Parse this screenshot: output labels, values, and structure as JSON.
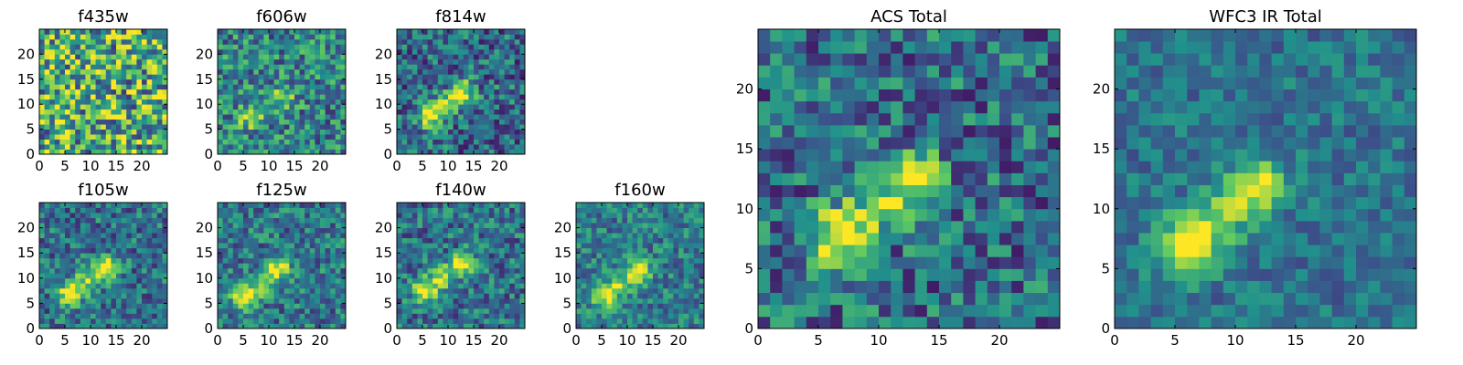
{
  "figure": {
    "colormap": "viridis",
    "colormap_stops": [
      "#440154",
      "#3b528b",
      "#21918c",
      "#5ec962",
      "#fde725"
    ]
  },
  "chart_data": [
    {
      "type": "heatmap",
      "title": "f435w",
      "xticks": [
        "0",
        "5",
        "10",
        "15",
        "20"
      ],
      "yticks": [
        "0",
        "5",
        "10",
        "15",
        "20"
      ],
      "xlim": [
        0,
        25
      ],
      "ylim": [
        0,
        25
      ],
      "grid_size": 25,
      "pattern": "noise",
      "mean_level": 0.62,
      "noise_level": 0.45,
      "blob_strength": 0.0
    },
    {
      "type": "heatmap",
      "title": "f606w",
      "xticks": [
        "0",
        "5",
        "10",
        "15",
        "20"
      ],
      "yticks": [
        "0",
        "5",
        "10",
        "15",
        "20"
      ],
      "xlim": [
        0,
        25
      ],
      "ylim": [
        0,
        25
      ],
      "grid_size": 25,
      "pattern": "blob",
      "mean_level": 0.45,
      "noise_level": 0.3,
      "blob_strength": 0.35,
      "blob_centers": [
        [
          6.5,
          7.5
        ],
        [
          12.5,
          11.5
        ]
      ]
    },
    {
      "type": "heatmap",
      "title": "f814w",
      "xticks": [
        "0",
        "5",
        "10",
        "15",
        "20"
      ],
      "yticks": [
        "0",
        "5",
        "10",
        "15",
        "20"
      ],
      "xlim": [
        0,
        25
      ],
      "ylim": [
        0,
        25
      ],
      "grid_size": 25,
      "pattern": "blob",
      "mean_level": 0.35,
      "noise_level": 0.28,
      "blob_strength": 0.6,
      "blob_centers": [
        [
          6.5,
          7.5
        ],
        [
          13.0,
          12.5
        ]
      ]
    },
    {
      "type": "heatmap",
      "title": "f105w",
      "xticks": [
        "0",
        "5",
        "10",
        "15",
        "20"
      ],
      "yticks": [
        "0",
        "5",
        "10",
        "15",
        "20"
      ],
      "xlim": [
        0,
        25
      ],
      "ylim": [
        0,
        25
      ],
      "grid_size": 25,
      "pattern": "blob",
      "mean_level": 0.38,
      "noise_level": 0.25,
      "blob_strength": 0.6,
      "blob_centers": [
        [
          6.0,
          7.0
        ],
        [
          13.0,
          12.0
        ]
      ]
    },
    {
      "type": "heatmap",
      "title": "f125w",
      "xticks": [
        "0",
        "5",
        "10",
        "15",
        "20"
      ],
      "yticks": [
        "0",
        "5",
        "10",
        "15",
        "20"
      ],
      "xlim": [
        0,
        25
      ],
      "ylim": [
        0,
        25
      ],
      "grid_size": 25,
      "pattern": "blob",
      "mean_level": 0.4,
      "noise_level": 0.25,
      "blob_strength": 0.55,
      "blob_centers": [
        [
          5.0,
          6.0
        ],
        [
          12.0,
          12.0
        ]
      ]
    },
    {
      "type": "heatmap",
      "title": "f140w",
      "xticks": [
        "0",
        "5",
        "10",
        "15",
        "20"
      ],
      "yticks": [
        "0",
        "5",
        "10",
        "15",
        "20"
      ],
      "xlim": [
        0,
        25
      ],
      "ylim": [
        0,
        25
      ],
      "grid_size": 25,
      "pattern": "blob",
      "mean_level": 0.38,
      "noise_level": 0.25,
      "blob_strength": 0.55,
      "blob_centers": [
        [
          5.5,
          7.5
        ],
        [
          13.0,
          13.0
        ]
      ]
    },
    {
      "type": "heatmap",
      "title": "f160w",
      "xticks": [
        "0",
        "5",
        "10",
        "15",
        "20"
      ],
      "yticks": [
        "0",
        "5",
        "10",
        "15",
        "20"
      ],
      "xlim": [
        0,
        25
      ],
      "ylim": [
        0,
        25
      ],
      "grid_size": 25,
      "pattern": "blob",
      "mean_level": 0.42,
      "noise_level": 0.22,
      "blob_strength": 0.5,
      "blob_centers": [
        [
          5.5,
          6.5
        ],
        [
          12.5,
          11.5
        ]
      ]
    },
    {
      "type": "heatmap",
      "title": "ACS Total",
      "xticks": [
        "0",
        "5",
        "10",
        "15",
        "20"
      ],
      "yticks": [
        "0",
        "5",
        "10",
        "15",
        "20"
      ],
      "xlim": [
        0,
        25
      ],
      "ylim": [
        0,
        25
      ],
      "grid_size": 25,
      "pattern": "blob",
      "mean_level": 0.36,
      "noise_level": 0.28,
      "blob_strength": 0.62,
      "blob_centers": [
        [
          6.5,
          7.5
        ],
        [
          13.0,
          12.5
        ]
      ]
    },
    {
      "type": "heatmap",
      "title": "WFC3 IR Total",
      "xticks": [
        "0",
        "5",
        "10",
        "15",
        "20"
      ],
      "yticks": [
        "0",
        "5",
        "10",
        "15",
        "20"
      ],
      "xlim": [
        0,
        25
      ],
      "ylim": [
        0,
        25
      ],
      "grid_size": 25,
      "pattern": "blob",
      "mean_level": 0.38,
      "noise_level": 0.16,
      "blob_strength": 0.58,
      "blob_centers": [
        [
          6.0,
          7.0
        ],
        [
          12.0,
          12.0
        ]
      ]
    }
  ]
}
